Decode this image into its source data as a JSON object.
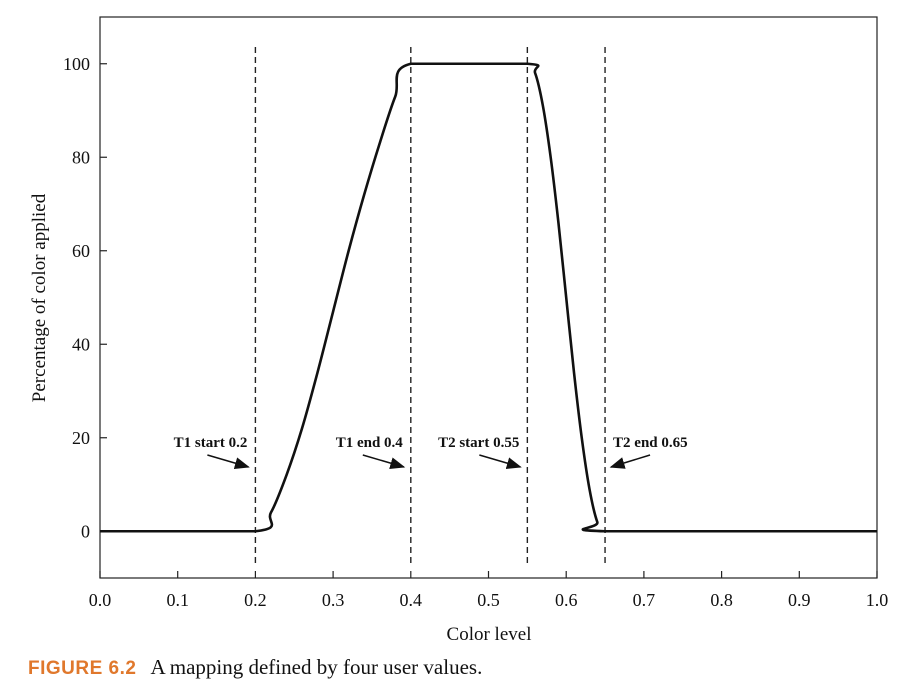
{
  "chart_data": {
    "type": "line",
    "xlabel": "Color level",
    "ylabel": "Percentage  of color applied",
    "xlim": [
      0.0,
      1.0
    ],
    "ylim": [
      -10,
      110
    ],
    "x_ticks": [
      0.0,
      0.1,
      0.2,
      0.3,
      0.4,
      0.5,
      0.6,
      0.7,
      0.8,
      0.9,
      1.0
    ],
    "x_tick_labels": [
      "0.0",
      "0.1",
      "0.2",
      "0.3",
      "0.4",
      "0.5",
      "0.6",
      "0.7",
      "0.8",
      "0.9",
      "1.0"
    ],
    "y_ticks": [
      0,
      20,
      40,
      60,
      80,
      100
    ],
    "y_tick_labels": [
      "0",
      "20",
      "40",
      "60",
      "80",
      "100"
    ],
    "grid": false,
    "series": [
      {
        "x": [
          0.0,
          0.2,
          0.22,
          0.24,
          0.26,
          0.28,
          0.3,
          0.32,
          0.34,
          0.36,
          0.38,
          0.4,
          0.55,
          0.56,
          0.57,
          0.58,
          0.59,
          0.6,
          0.61,
          0.62,
          0.63,
          0.64,
          0.65,
          1.0
        ],
        "y": [
          0,
          0,
          4,
          12,
          22,
          34,
          47,
          60,
          72,
          83,
          93,
          100,
          100,
          98,
          91,
          80,
          66,
          50,
          34,
          20,
          9,
          2,
          0,
          0
        ]
      }
    ],
    "markers": [
      {
        "x": 0.2,
        "label": "T1 start 0.2",
        "arrow_from": "left"
      },
      {
        "x": 0.4,
        "label": "T1 end 0.4",
        "arrow_from": "left"
      },
      {
        "x": 0.55,
        "label": "T2 start 0.55",
        "arrow_from": "left"
      },
      {
        "x": 0.65,
        "label": "T2 end 0.65",
        "arrow_from": "right"
      }
    ]
  },
  "caption": {
    "figure_label": "FIGURE 6.2",
    "text": "A mapping defined by four user values."
  },
  "colors": {
    "line": "#111111",
    "figure_label": "#e0782c"
  }
}
